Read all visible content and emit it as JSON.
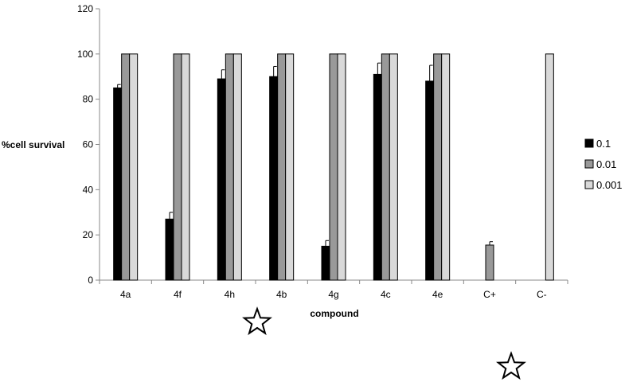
{
  "chart_data": {
    "type": "bar",
    "title": "",
    "xlabel": "compound",
    "ylabel": "%cell survival",
    "ylim": [
      0,
      120
    ],
    "yticks": [
      0,
      20,
      40,
      60,
      80,
      100,
      120
    ],
    "grid": false,
    "legend_position": "right",
    "categories": [
      "4a",
      "4f",
      "4h",
      "4b",
      "4g",
      "4c",
      "4e",
      "C+",
      "C-"
    ],
    "series": [
      {
        "name": "0.1",
        "color": "#000000",
        "values": [
          85,
          27,
          89,
          90,
          15,
          91,
          88,
          null,
          null
        ],
        "errors": [
          1.5,
          3,
          4,
          4.5,
          2.5,
          5,
          7,
          null,
          null
        ]
      },
      {
        "name": "0.01",
        "color": "#999999",
        "values": [
          100,
          100,
          100,
          100,
          100,
          100,
          100,
          15.5,
          null
        ],
        "errors": [
          0,
          0,
          0,
          0,
          0,
          0,
          0,
          1.5,
          null
        ]
      },
      {
        "name": "0.001",
        "color": "#d9d9d9",
        "values": [
          100,
          100,
          100,
          100,
          100,
          100,
          100,
          null,
          100
        ],
        "errors": [
          0,
          0,
          0,
          0,
          0,
          0,
          0,
          null,
          0
        ]
      }
    ]
  }
}
